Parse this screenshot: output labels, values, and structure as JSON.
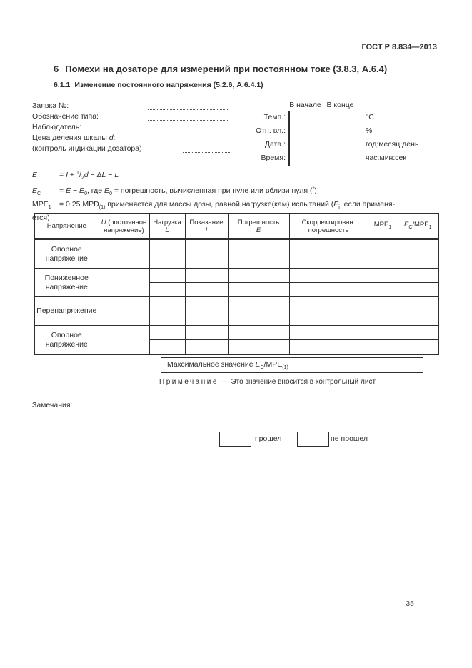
{
  "doc_code": "ГОСТ Р 8.834—2013",
  "page_number": "35",
  "section": {
    "number": "6",
    "title": "Помехи на дозаторе для измерений при постоянном токе (3.8.3, А.6.4)"
  },
  "subsection": {
    "number": "6.1.1",
    "title": "Изменение постоянного напряжения (5.2.6, А.6.4.1)"
  },
  "form": {
    "fields": [
      {
        "label": [
          {
            "t": "Заявка №:"
          }
        ]
      },
      {
        "label": [
          {
            "t": "Обозначение типа:"
          }
        ]
      },
      {
        "label": [
          {
            "t": "Наблюдатель:"
          }
        ]
      },
      {
        "label": [
          {
            "t": "Цена деления шкалы "
          },
          {
            "t": "d",
            "c": "i"
          },
          {
            "t": ":"
          }
        ]
      },
      {
        "label": [
          {
            "t": "(контроль индикации дозатора)"
          }
        ]
      }
    ]
  },
  "meta": {
    "col_headers": [
      "В начале",
      "В конце"
    ],
    "rows": [
      {
        "label": "Темп.:",
        "unit": "°С"
      },
      {
        "label": "Отн. вл.:",
        "unit": "%"
      },
      {
        "label": "Дата :",
        "unit": "год:месяц:день"
      },
      {
        "label": "Время:",
        "unit": "час:мин:сек"
      }
    ]
  },
  "formulas": [
    {
      "term": [
        {
          "t": "E",
          "c": "i"
        }
      ],
      "body": [
        {
          "t": "= "
        },
        {
          "t": "I",
          "c": "i"
        },
        {
          "t": " + "
        },
        {
          "t": "1",
          "c": "sup"
        },
        {
          "t": "/"
        },
        {
          "t": "2",
          "c": "sub"
        },
        {
          "t": "d",
          "c": "i"
        },
        {
          "t": " − Δ"
        },
        {
          "t": "L",
          "c": "i"
        },
        {
          "t": " − "
        },
        {
          "t": "L",
          "c": "i"
        }
      ]
    },
    {
      "term": [
        {
          "t": "E",
          "c": "i"
        },
        {
          "t": "C",
          "c": "sub"
        }
      ],
      "body": [
        {
          "t": "= "
        },
        {
          "t": "E",
          "c": "i"
        },
        {
          "t": " − "
        },
        {
          "t": "E",
          "c": "i"
        },
        {
          "t": "0",
          "c": "sub"
        },
        {
          "t": ", где "
        },
        {
          "t": "E",
          "c": "i"
        },
        {
          "t": "0",
          "c": "sub"
        },
        {
          "t": " = погрешность, вычисленная при нуле или вблизи нуля ("
        },
        {
          "t": "*",
          "c": "sup"
        },
        {
          "t": ")"
        }
      ]
    },
    {
      "term": [
        {
          "t": "MPE"
        },
        {
          "t": "1",
          "c": "sub"
        }
      ],
      "body": [
        {
          "t": "= 0,25 MPD"
        },
        {
          "t": "(1)",
          "c": "sub"
        },
        {
          "t": " применяется для массы дозы, равной нагрузке(кам) испытаний ("
        },
        {
          "t": "P",
          "c": "i"
        },
        {
          "t": "i",
          "c": "sub"
        },
        {
          "t": ", если применя-"
        }
      ],
      "cont": "ется)"
    }
  ],
  "table": {
    "headers": [
      [
        {
          "t": "Напряжение"
        }
      ],
      [
        {
          "t": "U",
          "c": "i"
        },
        {
          "t": " (постоянное напряжение)"
        }
      ],
      [
        {
          "t": "Нагрузка",
          "c": "ln"
        },
        {
          "t": "L",
          "c": "i ln"
        }
      ],
      [
        {
          "t": "Показание",
          "c": "ln"
        },
        {
          "t": "I",
          "c": "i ln"
        }
      ],
      [
        {
          "t": "Погрешность",
          "c": "ln"
        },
        {
          "t": "E",
          "c": "i ln"
        }
      ],
      [
        {
          "t": "Скорректирован. погрешность"
        }
      ],
      [
        {
          "t": "MPE"
        },
        {
          "t": "1",
          "c": "sub"
        }
      ],
      [
        {
          "t": "E",
          "c": "i"
        },
        {
          "t": "C",
          "c": "sub"
        },
        {
          "t": "/MPE"
        },
        {
          "t": "1",
          "c": "sub"
        }
      ]
    ],
    "groups": [
      "Опорное напряжение",
      "Пониженное напряжение",
      "Перенапряжение",
      "Опорное напряжение"
    ],
    "sub_rows_per_group": 2,
    "cell_values": ""
  },
  "max_row": {
    "label": [
      {
        "t": "Максимальное значение "
      },
      {
        "t": "E",
        "c": "i"
      },
      {
        "t": "C",
        "c": "sub"
      },
      {
        "t": "/MPE"
      },
      {
        "t": "(1)",
        "c": "sub"
      }
    ],
    "value": ""
  },
  "note": {
    "label": "Примечание",
    "text": "— Это значение вносится в контрольный лист"
  },
  "remarks_label": "Замечания:",
  "result": {
    "pass_label": "прошел",
    "fail_label": "не прошел"
  }
}
